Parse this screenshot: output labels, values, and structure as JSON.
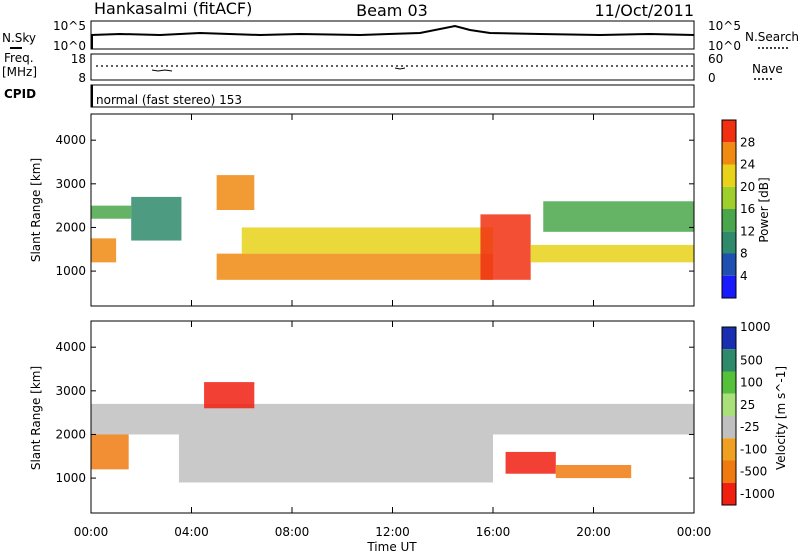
{
  "header": {
    "station": "Hankasalmi (fitACF)",
    "beam": "Beam 03",
    "date": "11/Oct/2011"
  },
  "strips": {
    "nsky_label": "N.Sky",
    "nsky_top": "10^5",
    "nsky_bottom": "10^0",
    "nsearch_label": "N.Search",
    "nsearch_top": "10^5",
    "nsearch_bottom": "10^0",
    "freq_label": "Freq.",
    "freq_unit": "[MHz]",
    "freq_top": "18",
    "freq_bottom": "8",
    "nave_label": "Nave",
    "nave_top": "60",
    "nave_bottom": "0",
    "cpid_label": "CPID",
    "cpid_text": "normal (fast stereo) 153"
  },
  "chart_data": [
    {
      "type": "heatmap",
      "name": "power",
      "ylabel": "Slant Range [km]",
      "yticks": [
        "1000",
        "2000",
        "3000",
        "4000"
      ],
      "ylim": [
        200,
        4600
      ],
      "colorbar": {
        "label": "Power [dB]",
        "ticks": [
          "4",
          "8",
          "12",
          "16",
          "20",
          "24",
          "28"
        ],
        "colors": [
          "#1a1aff",
          "#1f4fb0",
          "#2e8a6a",
          "#4aa64a",
          "#9fcf2a",
          "#e8d21a",
          "#f08a10",
          "#f03010"
        ]
      },
      "bands": [
        {
          "t0": 0.0,
          "t1": 1.0,
          "r0": 1200,
          "r1": 1750,
          "level": 6
        },
        {
          "t0": 0.0,
          "t1": 1.6,
          "r0": 2200,
          "r1": 2500,
          "level": 3
        },
        {
          "t0": 1.6,
          "t1": 3.6,
          "r0": 1700,
          "r1": 2700,
          "level": 2
        },
        {
          "t0": 5.0,
          "t1": 16.0,
          "r0": 800,
          "r1": 1400,
          "level": 6
        },
        {
          "t0": 6.0,
          "t1": 16.0,
          "r0": 1400,
          "r1": 2000,
          "level": 5
        },
        {
          "t0": 5.0,
          "t1": 6.5,
          "r0": 2400,
          "r1": 3200,
          "level": 6
        },
        {
          "t0": 15.5,
          "t1": 17.5,
          "r0": 800,
          "r1": 2300,
          "level": 7
        },
        {
          "t0": 17.5,
          "t1": 24.0,
          "r0": 1200,
          "r1": 1600,
          "level": 5
        },
        {
          "t0": 18.0,
          "t1": 24.0,
          "r0": 1900,
          "r1": 2600,
          "level": 3
        }
      ]
    },
    {
      "type": "heatmap",
      "name": "velocity",
      "ylabel": "Slant Range [km]",
      "yticks": [
        "1000",
        "2000",
        "3000",
        "4000"
      ],
      "ylim": [
        200,
        4600
      ],
      "colorbar": {
        "label": "Velocity [m s^-1]",
        "ticks": [
          "1000",
          "500",
          "100",
          "25",
          "-25",
          "-100",
          "-500",
          "-1000"
        ],
        "colors": [
          "#1a2fb0",
          "#2e8a6a",
          "#55c03a",
          "#a9e07a",
          "#c0c0c0",
          "#f0a020",
          "#f07a10",
          "#f02010"
        ]
      },
      "bands": [
        {
          "t0": 0.0,
          "t1": 24.0,
          "r0": 2000,
          "r1": 2700,
          "level": 4
        },
        {
          "t0": 3.5,
          "t1": 16.0,
          "r0": 900,
          "r1": 2000,
          "level": 4
        },
        {
          "t0": 0.0,
          "t1": 1.5,
          "r0": 1200,
          "r1": 2000,
          "level": 6
        },
        {
          "t0": 4.5,
          "t1": 6.5,
          "r0": 2600,
          "r1": 3200,
          "level": 7
        },
        {
          "t0": 16.5,
          "t1": 18.5,
          "r0": 1100,
          "r1": 1600,
          "level": 7
        },
        {
          "t0": 18.5,
          "t1": 21.5,
          "r0": 1000,
          "r1": 1300,
          "level": 6
        }
      ]
    }
  ],
  "time_axis": {
    "ticks": [
      "00:00",
      "04:00",
      "08:00",
      "12:00",
      "16:00",
      "20:00",
      "00:00"
    ],
    "label": "Time UT"
  }
}
